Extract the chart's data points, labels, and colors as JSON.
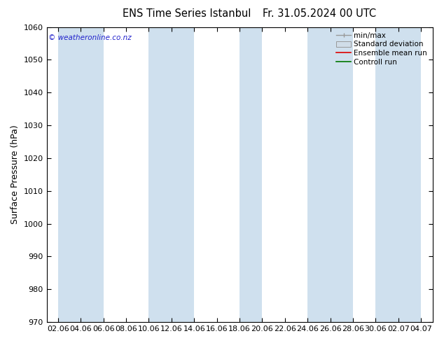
{
  "title": "ENS Time Series Istanbul",
  "title2": "Fr. 31.05.2024 00 UTC",
  "ylabel": "Surface Pressure (hPa)",
  "ylim": [
    970,
    1060
  ],
  "yticks": [
    970,
    980,
    990,
    1000,
    1010,
    1020,
    1030,
    1040,
    1050,
    1060
  ],
  "xtick_labels": [
    "02.06",
    "04.06",
    "06.06",
    "08.06",
    "10.06",
    "12.06",
    "14.06",
    "16.06",
    "18.06",
    "20.06",
    "22.06",
    "24.06",
    "26.06",
    "28.06",
    "30.06",
    "02.07",
    "04.07"
  ],
  "background_color": "#ffffff",
  "plot_bg_color": "#ffffff",
  "shaded_band_color": "#cfe0ee",
  "watermark": "© weatheronline.co.nz",
  "watermark_color": "#2222cc",
  "legend_items": [
    "min/max",
    "Standard deviation",
    "Ensemble mean run",
    "Controll run"
  ],
  "legend_colors": [
    "#999999",
    "#bbbbbb",
    "#dd0000",
    "#007700"
  ],
  "title_fontsize": 10.5,
  "tick_fontsize": 8,
  "ylabel_fontsize": 9
}
